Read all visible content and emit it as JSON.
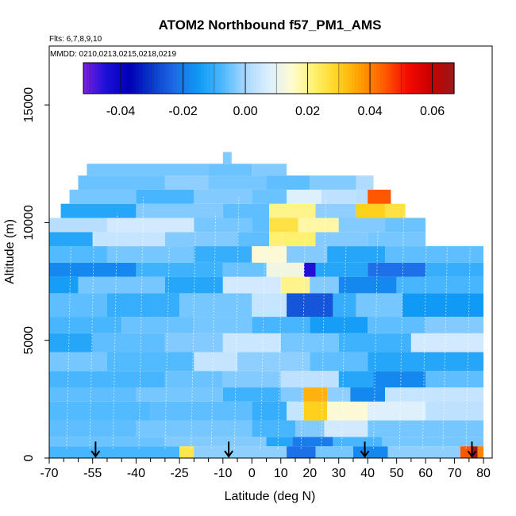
{
  "chart_data": {
    "type": "heatmap",
    "title": "ATOM2 Northbound f57_PM1_AMS",
    "flights_label": "Flts: 6,7,8,9,10",
    "mmdd_label": "MMDD: 0210,0213,0215,0218,0219",
    "xlabel": "Latitude (deg N)",
    "ylabel": "Altitude (m)",
    "xlim": [
      -70,
      83
    ],
    "ylim": [
      0,
      17500
    ],
    "x_ticks": [
      -70,
      -55,
      -40,
      -25,
      -10,
      0,
      10,
      20,
      30,
      40,
      50,
      60,
      70,
      80
    ],
    "x_minor_ticks": [
      -65,
      -60,
      -50,
      -45,
      -35,
      -30,
      -20,
      -15,
      -5,
      5,
      15,
      25,
      35,
      45,
      55,
      65,
      75
    ],
    "y_ticks": [
      0,
      5000,
      10000,
      15000
    ],
    "colorbar": {
      "min": -0.052,
      "max": 0.067,
      "ticks": [
        -0.04,
        -0.02,
        0.0,
        0.02,
        0.04,
        0.06
      ],
      "tick_labels": [
        "-0.04",
        "-0.02",
        "0.00",
        "0.02",
        "0.04",
        "0.06"
      ],
      "colors": [
        "#7b1fe0",
        "#1a0fd6",
        "#0000b4",
        "#0a3ccd",
        "#1e6ee6",
        "#0f9bf5",
        "#4db8ff",
        "#a8d8ff",
        "#dcefff",
        "#fffbd0",
        "#fff06a",
        "#ffd21e",
        "#ff9a00",
        "#ff5a00",
        "#f50a00",
        "#c80000",
        "#9a1a1a"
      ]
    },
    "altitude_bins": [
      {
        "y0": 0,
        "y1": 500,
        "cells": [
          [
            -70,
            -25,
            -0.008
          ],
          [
            -25,
            -20,
            0.025
          ],
          [
            -20,
            12,
            -0.002
          ],
          [
            12,
            22,
            -0.022
          ],
          [
            22,
            35,
            -0.004
          ],
          [
            35,
            47,
            -0.018
          ],
          [
            47,
            72,
            -0.002
          ],
          [
            72,
            76,
            0.045
          ],
          [
            76,
            78,
            0.067
          ],
          [
            78,
            80,
            0.04
          ]
        ]
      },
      {
        "y0": 500,
        "y1": 900,
        "cells": [
          [
            -70,
            -30,
            -0.005
          ],
          [
            -30,
            5,
            -0.003
          ],
          [
            5,
            14,
            -0.012
          ],
          [
            14,
            28,
            -0.02
          ],
          [
            28,
            45,
            -0.008
          ],
          [
            45,
            80,
            -0.004
          ]
        ]
      },
      {
        "y0": 900,
        "y1": 1600,
        "cells": [
          [
            -70,
            -40,
            -0.006
          ],
          [
            -40,
            0,
            -0.004
          ],
          [
            0,
            15,
            -0.008
          ],
          [
            15,
            25,
            -0.003
          ],
          [
            25,
            40,
            0.006
          ],
          [
            40,
            80,
            -0.004
          ]
        ]
      },
      {
        "y0": 1600,
        "y1": 2400,
        "cells": [
          [
            -70,
            -35,
            -0.007
          ],
          [
            -35,
            0,
            -0.006
          ],
          [
            0,
            12,
            -0.01
          ],
          [
            12,
            18,
            0.004
          ],
          [
            18,
            26,
            0.03
          ],
          [
            26,
            40,
            0.014
          ],
          [
            40,
            60,
            0.008
          ],
          [
            60,
            80,
            0.003
          ]
        ]
      },
      {
        "y0": 2400,
        "y1": 3000,
        "cells": [
          [
            -70,
            -40,
            -0.006
          ],
          [
            -40,
            -10,
            -0.004
          ],
          [
            -10,
            10,
            -0.009
          ],
          [
            10,
            18,
            -0.003
          ],
          [
            18,
            26,
            0.034
          ],
          [
            26,
            34,
            -0.002
          ],
          [
            34,
            46,
            -0.018
          ],
          [
            46,
            80,
            0.004
          ]
        ]
      },
      {
        "y0": 3000,
        "y1": 3700,
        "cells": [
          [
            -70,
            -30,
            -0.008
          ],
          [
            -30,
            -10,
            -0.005
          ],
          [
            -10,
            10,
            -0.003
          ],
          [
            10,
            30,
            0.003
          ],
          [
            30,
            42,
            -0.012
          ],
          [
            42,
            60,
            -0.018
          ],
          [
            60,
            80,
            -0.006
          ]
        ]
      },
      {
        "y0": 3700,
        "y1": 4500,
        "cells": [
          [
            -70,
            -50,
            -0.004
          ],
          [
            -50,
            -20,
            -0.007
          ],
          [
            -20,
            -5,
            0.004
          ],
          [
            -5,
            20,
            -0.002
          ],
          [
            20,
            40,
            -0.006
          ],
          [
            40,
            80,
            -0.012
          ]
        ]
      },
      {
        "y0": 4500,
        "y1": 5300,
        "cells": [
          [
            -70,
            -55,
            -0.012
          ],
          [
            -55,
            -30,
            -0.006
          ],
          [
            -30,
            -10,
            -0.003
          ],
          [
            -10,
            10,
            0.005
          ],
          [
            10,
            30,
            -0.004
          ],
          [
            30,
            55,
            -0.009
          ],
          [
            55,
            80,
            0.006
          ]
        ]
      },
      {
        "y0": 5300,
        "y1": 6000,
        "cells": [
          [
            -70,
            -45,
            -0.008
          ],
          [
            -45,
            -20,
            -0.005
          ],
          [
            -20,
            0,
            -0.004
          ],
          [
            0,
            20,
            -0.008
          ],
          [
            20,
            40,
            -0.014
          ],
          [
            40,
            60,
            -0.006
          ],
          [
            60,
            80,
            -0.003
          ]
        ]
      },
      {
        "y0": 6000,
        "y1": 7000,
        "cells": [
          [
            -70,
            -50,
            -0.006
          ],
          [
            -50,
            -25,
            -0.01
          ],
          [
            -25,
            0,
            -0.004
          ],
          [
            0,
            12,
            0.004
          ],
          [
            12,
            28,
            -0.026
          ],
          [
            28,
            36,
            -0.01
          ],
          [
            36,
            52,
            -0.004
          ],
          [
            52,
            80,
            -0.015
          ]
        ]
      },
      {
        "y0": 7000,
        "y1": 7700,
        "cells": [
          [
            -70,
            -60,
            -0.014
          ],
          [
            -60,
            -30,
            -0.004
          ],
          [
            -30,
            -10,
            -0.012
          ],
          [
            -10,
            10,
            0.006
          ],
          [
            10,
            20,
            0.02
          ],
          [
            20,
            30,
            -0.003
          ],
          [
            30,
            50,
            -0.018
          ],
          [
            50,
            80,
            -0.008
          ]
        ]
      },
      {
        "y0": 7700,
        "y1": 8300,
        "cells": [
          [
            -70,
            -40,
            -0.018
          ],
          [
            -40,
            -10,
            -0.009
          ],
          [
            -10,
            5,
            -0.005
          ],
          [
            5,
            18,
            0.012
          ],
          [
            18,
            22,
            -0.045
          ],
          [
            22,
            40,
            -0.012
          ],
          [
            40,
            60,
            -0.022
          ],
          [
            60,
            80,
            -0.01
          ]
        ]
      },
      {
        "y0": 8300,
        "y1": 9000,
        "cells": [
          [
            -70,
            -50,
            -0.007
          ],
          [
            -50,
            -20,
            -0.004
          ],
          [
            -20,
            0,
            -0.01
          ],
          [
            0,
            12,
            0.014
          ],
          [
            12,
            26,
            -0.003
          ],
          [
            26,
            46,
            -0.012
          ],
          [
            46,
            80,
            -0.006
          ]
        ]
      },
      {
        "y0": 9000,
        "y1": 9600,
        "cells": [
          [
            -70,
            -55,
            -0.012
          ],
          [
            -55,
            -30,
            0.004
          ],
          [
            -30,
            -5,
            -0.003
          ],
          [
            -5,
            6,
            -0.006
          ],
          [
            6,
            22,
            0.022
          ],
          [
            22,
            40,
            -0.003
          ],
          [
            40,
            60,
            -0.004
          ]
        ]
      },
      {
        "y0": 9600,
        "y1": 10200,
        "cells": [
          [
            -70,
            -50,
            0.002
          ],
          [
            -50,
            -20,
            0.006
          ],
          [
            -20,
            0,
            -0.004
          ],
          [
            0,
            6,
            -0.006
          ],
          [
            6,
            16,
            0.026
          ],
          [
            16,
            30,
            0.018
          ],
          [
            30,
            46,
            -0.003
          ],
          [
            46,
            60,
            -0.005
          ]
        ]
      },
      {
        "y0": 10200,
        "y1": 10800,
        "cells": [
          [
            -66,
            -40,
            -0.012
          ],
          [
            -40,
            -10,
            -0.003
          ],
          [
            -10,
            6,
            -0.006
          ],
          [
            6,
            22,
            0.02
          ],
          [
            22,
            36,
            -0.002
          ],
          [
            36,
            46,
            0.03
          ],
          [
            46,
            53,
            0.026
          ]
        ]
      },
      {
        "y0": 10800,
        "y1": 11400,
        "cells": [
          [
            -63,
            -40,
            -0.004
          ],
          [
            -40,
            -20,
            -0.008
          ],
          [
            -20,
            0,
            -0.003
          ],
          [
            0,
            12,
            -0.005
          ],
          [
            12,
            24,
            0.008
          ],
          [
            24,
            36,
            0.003
          ],
          [
            36,
            40,
            0.002
          ],
          [
            40,
            48,
            0.045
          ]
        ]
      },
      {
        "y0": 11400,
        "y1": 12000,
        "cells": [
          [
            -60,
            -30,
            -0.005
          ],
          [
            -30,
            -15,
            -0.002
          ],
          [
            -15,
            5,
            -0.004
          ],
          [
            5,
            20,
            -0.006
          ],
          [
            20,
            36,
            -0.003
          ],
          [
            36,
            42,
            0.001
          ]
        ]
      },
      {
        "y0": 12000,
        "y1": 12500,
        "cells": [
          [
            -57,
            -15,
            -0.004
          ],
          [
            -15,
            0,
            -0.005
          ],
          [
            0,
            12,
            -0.003
          ]
        ]
      },
      {
        "y0": 12500,
        "y1": 13000,
        "cells": [
          [
            -10,
            -7,
            -0.003
          ]
        ]
      }
    ],
    "arrows": [
      {
        "lat": -54,
        "alt": 700
      },
      {
        "lat": -8,
        "alt": 700
      },
      {
        "lat": 39,
        "alt": 700
      },
      {
        "lat": 76,
        "alt": 700
      }
    ]
  }
}
